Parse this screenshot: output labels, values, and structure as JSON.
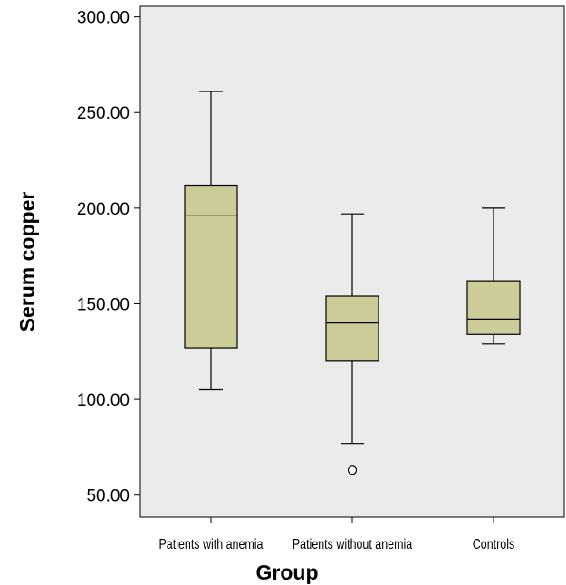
{
  "chart_data": {
    "type": "boxplot",
    "title": "",
    "xlabel": "Group",
    "ylabel": "Serum copper",
    "ylim": [
      38.5,
      305.5
    ],
    "yticks": [
      50,
      100,
      150,
      200,
      250,
      300
    ],
    "ytick_labels": [
      "50.00",
      "100.00",
      "150.00",
      "200.00",
      "250.00",
      "300.00"
    ],
    "grid": false,
    "colors": {
      "plot_background": "#ebebeb",
      "box_fill": "#cccc99",
      "line": "#000000"
    },
    "categories": [
      "Patients with anemia",
      "Patients without anemia",
      "Controls"
    ],
    "boxes": [
      {
        "category": "Patients with anemia",
        "whisker_low": 105,
        "q1": 127,
        "median": 196,
        "q3": 212,
        "whisker_high": 261,
        "outliers": []
      },
      {
        "category": "Patients without anemia",
        "whisker_low": 77,
        "q1": 120,
        "median": 140,
        "q3": 154,
        "whisker_high": 197,
        "outliers": [
          63
        ]
      },
      {
        "category": "Controls",
        "whisker_low": 129,
        "q1": 134,
        "median": 142,
        "q3": 162,
        "whisker_high": 200,
        "outliers": []
      }
    ]
  }
}
